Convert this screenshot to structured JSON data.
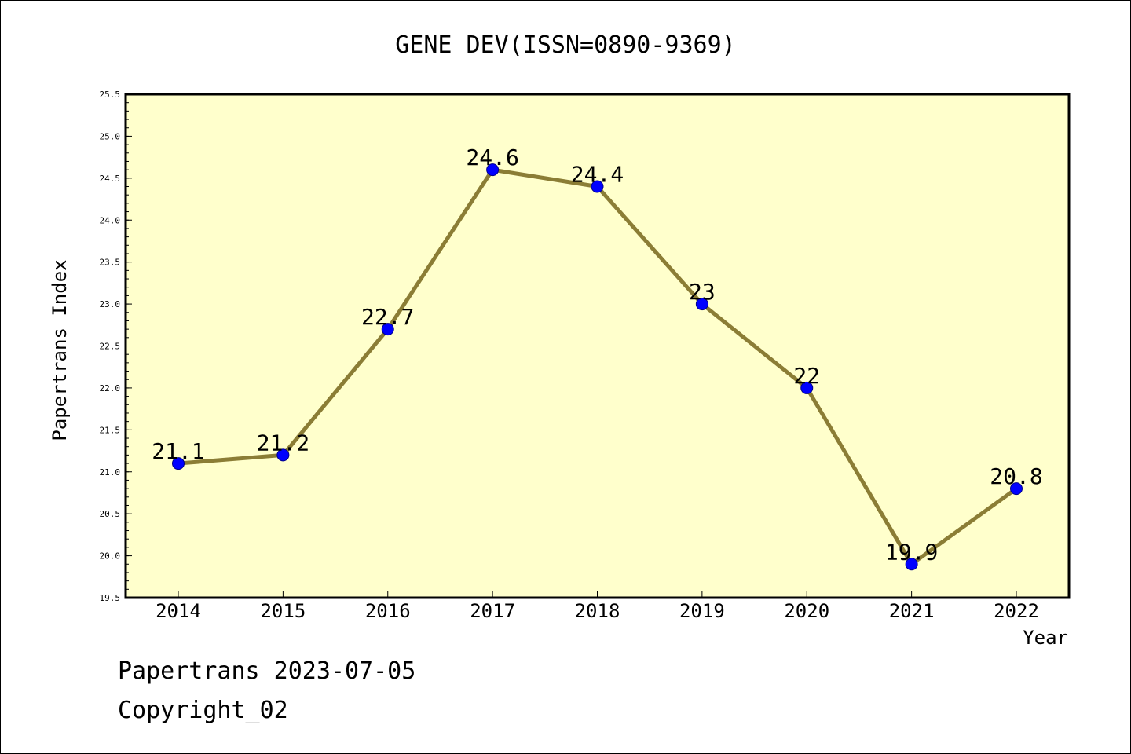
{
  "chart_data": {
    "type": "line",
    "title": "GENE DEV(ISSN=0890-9369)",
    "xlabel": "Year",
    "ylabel": "Papertrans Index",
    "categories": [
      "2014",
      "2015",
      "2016",
      "2017",
      "2018",
      "2019",
      "2020",
      "2021",
      "2022"
    ],
    "series": [
      {
        "values": [
          21.1,
          21.2,
          22.7,
          24.6,
          24.4,
          23.0,
          22.0,
          19.9,
          20.8
        ],
        "data_labels": [
          "21.1",
          "21.2",
          "22.7",
          "24.6",
          "24.4",
          "23",
          "22",
          "19.9",
          "20.8"
        ],
        "line_color": "#8b7d35",
        "marker_color": "#0000ff"
      }
    ],
    "ylim": [
      19.5,
      25.5
    ],
    "y_ticks": [
      "19.5",
      "20.0",
      "20.5",
      "21.0",
      "21.5",
      "22.0",
      "22.5",
      "23.0",
      "23.5",
      "24.0",
      "24.5",
      "25.0",
      "25.5"
    ],
    "plot_background": "#ffffcc",
    "grid": false
  },
  "footer": {
    "line1": "Papertrans 2023-07-05",
    "line2": "Copyright_02"
  }
}
